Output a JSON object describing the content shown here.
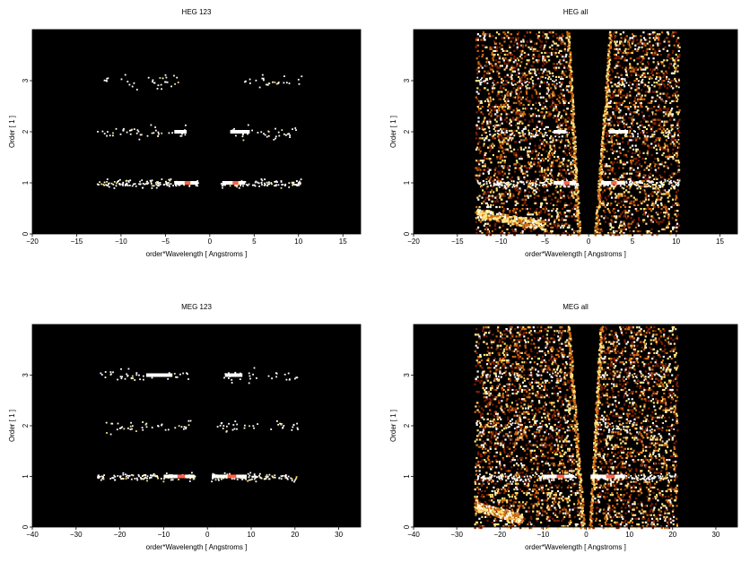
{
  "chart_data": [
    {
      "type": "heatmap",
      "title": "HEG 123",
      "xlabel": "order*Wavelength [ Angstroms ]",
      "ylabel": "Order [ 1 ]",
      "xlim": [
        -20,
        17
      ],
      "ylim": [
        0,
        4
      ],
      "xticks": [
        -20,
        -15,
        -10,
        -5,
        0,
        5,
        10,
        15
      ],
      "yticks": [
        0,
        1,
        2,
        3
      ],
      "background": "#000000",
      "bands": [
        {
          "order": 1,
          "x_ranges": [
            [
              -12.8,
              -1.2
            ],
            [
              1.2,
              10.3
            ]
          ],
          "density": 0.9,
          "bright_x": [
            [
              -4,
              -1.4
            ],
            [
              1.4,
              4
            ]
          ]
        },
        {
          "order": 2,
          "x_ranges": [
            [
              -12.8,
              -2.5
            ],
            [
              2.2,
              10.3
            ]
          ],
          "density": 0.35,
          "bright_x": [
            [
              -4,
              -2.6
            ],
            [
              2.3,
              4.5
            ]
          ]
        },
        {
          "order": 3,
          "x_ranges": [
            [
              -12.8,
              -3.5
            ],
            [
              3.2,
              10.3
            ]
          ],
          "density": 0.28,
          "bright_x": []
        }
      ],
      "wedges": []
    },
    {
      "type": "heatmap",
      "title": "HEG all",
      "xlabel": "order*Wavelength [ Angstroms ]",
      "ylabel": "Order [ 1 ]",
      "xlim": [
        -20,
        17
      ],
      "ylim": [
        0,
        4
      ],
      "xticks": [
        -20,
        -15,
        -10,
        -5,
        0,
        5,
        10,
        15
      ],
      "yticks": [
        0,
        1,
        2,
        3
      ],
      "background": "#000000",
      "bands": [
        {
          "order": 1,
          "x_ranges": [
            [
              -12.8,
              -1.2
            ],
            [
              1.2,
              10.3
            ]
          ],
          "density": 0.9,
          "bright_x": [
            [
              -4,
              -1.4
            ],
            [
              1.4,
              4
            ]
          ]
        },
        {
          "order": 2,
          "x_ranges": [
            [
              -12.8,
              -2.5
            ],
            [
              2.2,
              10.3
            ]
          ],
          "density": 0.4,
          "bright_x": [
            [
              -4,
              -2.6
            ],
            [
              2.3,
              4.5
            ]
          ]
        },
        {
          "order": 3,
          "x_ranges": [
            [
              -12.8,
              -3.5
            ],
            [
              3.2,
              10.3
            ]
          ],
          "density": 0.3,
          "bright_x": []
        }
      ],
      "wedges": [
        {
          "x_top": [
            -13.0,
            -2.3
          ],
          "x_bottom": [
            -13.0,
            -1.0
          ],
          "density": 0.5
        },
        {
          "x_top": [
            2.3,
            10.3
          ],
          "x_bottom": [
            0.6,
            10.3
          ],
          "density": 0.5
        }
      ],
      "bright_corner": {
        "x_range": [
          -13,
          -5
        ],
        "y_range": [
          0.1,
          0.5
        ]
      }
    },
    {
      "type": "heatmap",
      "title": "MEG 123",
      "xlabel": "order*Wavelength [ Angstroms ]",
      "ylabel": "Order [ 1 ]",
      "xlim": [
        -40,
        35
      ],
      "ylim": [
        0,
        4
      ],
      "xticks": [
        -40,
        -30,
        -20,
        -10,
        0,
        10,
        20,
        30
      ],
      "yticks": [
        0,
        1,
        2,
        3
      ],
      "background": "#000000",
      "bands": [
        {
          "order": 1,
          "x_ranges": [
            [
              -25.5,
              -2.5
            ],
            [
              0.8,
              20.5
            ]
          ],
          "density": 0.8,
          "bright_x": [
            [
              -10,
              -3
            ],
            [
              1,
              9
            ]
          ]
        },
        {
          "order": 2,
          "x_ranges": [
            [
              -24,
              -4
            ],
            [
              2,
              20.5
            ]
          ],
          "density": 0.32,
          "bright_x": []
        },
        {
          "order": 3,
          "x_ranges": [
            [
              -25.5,
              -4
            ],
            [
              2,
              20.5
            ]
          ],
          "density": 0.3,
          "bright_x": [
            [
              -14,
              -8
            ],
            [
              4,
              8
            ]
          ]
        }
      ],
      "wedges": []
    },
    {
      "type": "heatmap",
      "title": "MEG all",
      "xlabel": "order*Wavelength [ Angstroms ]",
      "ylabel": "Order [ 1 ]",
      "xlim": [
        -40,
        35
      ],
      "ylim": [
        0,
        4
      ],
      "xticks": [
        -40,
        -30,
        -20,
        -10,
        0,
        10,
        20,
        30
      ],
      "yticks": [
        0,
        1,
        2,
        3
      ],
      "background": "#000000",
      "bands": [
        {
          "order": 1,
          "x_ranges": [
            [
              -25.5,
              -2.5
            ],
            [
              0.8,
              20.5
            ]
          ],
          "density": 0.85,
          "bright_x": [
            [
              -10,
              -3
            ],
            [
              1,
              9
            ]
          ]
        },
        {
          "order": 2,
          "x_ranges": [
            [
              -24,
              -4
            ],
            [
              2,
              20.5
            ]
          ],
          "density": 0.35,
          "bright_x": []
        },
        {
          "order": 3,
          "x_ranges": [
            [
              -25.5,
              -4
            ],
            [
              2,
              20.5
            ]
          ],
          "density": 0.3,
          "bright_x": []
        }
      ],
      "wedges": [
        {
          "x_top": [
            -26.0,
            -4.0
          ],
          "x_bottom": [
            -26.0,
            -0.5
          ],
          "density": 0.5
        },
        {
          "x_top": [
            3.0,
            21.0
          ],
          "x_bottom": [
            0.5,
            21.0
          ],
          "density": 0.5
        }
      ],
      "bright_corner": {
        "x_range": [
          -26,
          -15
        ],
        "y_range": [
          0.1,
          0.5
        ]
      }
    }
  ],
  "colors": {
    "background": "#000000",
    "count_low": "#7a1f05",
    "count_mid": "#d06a10",
    "count_high": "#ffe27a",
    "count_max": "#ffffff",
    "hot_core": "#ff3a1a"
  }
}
